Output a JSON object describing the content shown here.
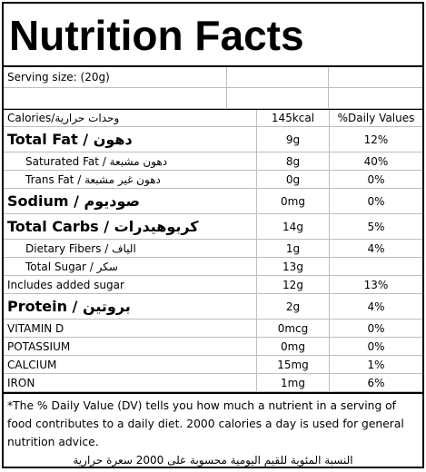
{
  "title": "Nutrition Facts",
  "serving_size": "Serving size:  (20g)",
  "header": {
    "name": "Calories/وحدات حرارية",
    "amount": "145kcal",
    "dv": "%Daily Values"
  },
  "rows": [
    {
      "name": "Total Fat / دهون",
      "amount": "9g",
      "dv": "12%"
    },
    {
      "name": "Saturated Fat / دهون مشبعة",
      "amount": "8g",
      "dv": "40%"
    },
    {
      "name": "Trans Fat / دهون غير مشبعة",
      "amount": "0g",
      "dv": "0%"
    },
    {
      "name": "Sodium / صوديوم",
      "amount": "0mg",
      "dv": "0%"
    },
    {
      "name": "Total Carbs / كربوهيدرات",
      "amount": "14g",
      "dv": "5%"
    },
    {
      "name": "Dietary Fibers / الياف",
      "amount": "1g",
      "dv": "4%"
    },
    {
      "name": "Total Sugar / سكر",
      "amount": "13g"
    },
    {
      "name": "Includes added sugar",
      "amount": "12g",
      "dv": "13%"
    },
    {
      "name": "Protein / بروتين",
      "amount": "2g",
      "dv": "4%"
    },
    {
      "name": "VITAMIN D",
      "amount": "0mcg",
      "dv": "0%"
    },
    {
      "name": "POTASSIUM",
      "amount": "0mg",
      "dv": "0%"
    },
    {
      "name": "CALCIUM",
      "amount": "15mg",
      "dv": "1%"
    },
    {
      "name": "IRON",
      "amount": "1mg",
      "dv": "6%"
    }
  ],
  "footnote": {
    "text": "*The % Daily Value (DV) tells you how much a nutrient in a serving of food contributes to a daily diet. 2000 calories a day is used for general nutrition advice.",
    "arabic": "النسبة المئوية للقيم اليومية محسوبة على 2000 سعرة حرارية"
  }
}
